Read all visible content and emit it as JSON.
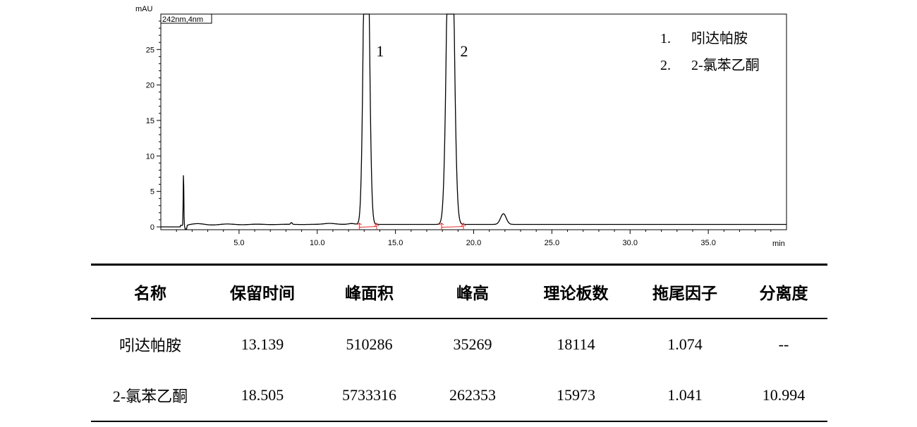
{
  "chart_data": {
    "type": "line",
    "ylabel": "mAU",
    "xlabel": "min",
    "channel_label": "242nm,4nm",
    "xlim": [
      0,
      40
    ],
    "ylim": [
      -1,
      30
    ],
    "x_ticks": [
      5,
      10,
      15,
      20,
      25,
      30,
      35
    ],
    "x_tick_labels": [
      "5.0",
      "10.0",
      "15.0",
      "20.0",
      "25.0",
      "30.0",
      "35.0"
    ],
    "y_ticks": [
      0,
      5,
      10,
      15,
      20,
      25
    ],
    "y_tick_labels": [
      "0",
      "5",
      "10",
      "15",
      "20",
      "25"
    ],
    "peaks": [
      {
        "label": "1",
        "rt": 13.14,
        "height_shown": 30
      },
      {
        "label": "2",
        "rt": 18.51,
        "height_shown": 30
      }
    ],
    "minor_peaks": [
      {
        "rt": 1.45,
        "height": 7.5
      },
      {
        "rt": 21.9,
        "height": 1.5
      }
    ],
    "integration_marks": [
      12.7,
      13.8,
      17.95,
      19.35
    ],
    "legend": [
      {
        "num": "1.",
        "name": "吲达帕胺"
      },
      {
        "num": "2.",
        "name": "2-氯苯乙酮"
      }
    ],
    "colors": {
      "trace": "#000000",
      "baseline_marks": "#e03030"
    }
  },
  "table": {
    "headers": [
      "名称",
      "保留时间",
      "峰面积",
      "峰高",
      "理论板数",
      "拖尾因子",
      "分离度"
    ],
    "rows": [
      [
        "吲达帕胺",
        "13.139",
        "510286",
        "35269",
        "18114",
        "1.074",
        "--"
      ],
      [
        "2-氯苯乙酮",
        "18.505",
        "5733316",
        "262353",
        "15973",
        "1.041",
        "10.994"
      ]
    ]
  }
}
